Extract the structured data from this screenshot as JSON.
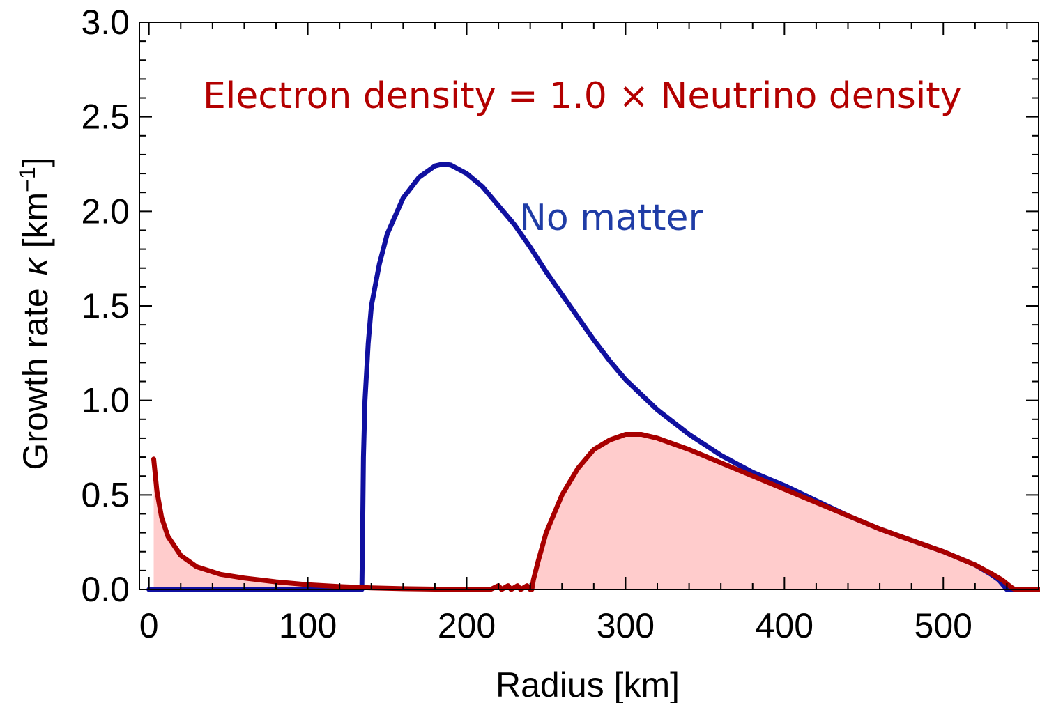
{
  "chart_data": {
    "type": "line",
    "title": "",
    "xlabel": "Radius [km]",
    "ylabel": {
      "main": "Growth rate",
      "symbol": "κ",
      "unit_open": "[km",
      "unit_sup": "−1",
      "unit_close": "]"
    },
    "xlim": [
      -6,
      560
    ],
    "ylim": [
      0,
      3.0
    ],
    "x_ticks": [
      0,
      100,
      200,
      300,
      400,
      500
    ],
    "x_tick_labels": [
      "0",
      "100",
      "200",
      "300",
      "400",
      "500"
    ],
    "y_ticks": [
      0,
      0.5,
      1.0,
      1.5,
      2.0,
      2.5,
      3.0
    ],
    "y_tick_labels": [
      "0.0",
      "0.5",
      "1.0",
      "1.5",
      "2.0",
      "2.5",
      "3.0"
    ],
    "x_minor_step": 20,
    "y_minor_step": 0.1,
    "grid": false,
    "legend": "none",
    "annotations": [
      {
        "text": "Electron density = 1.0 × Neutrino density",
        "color": "#b30000"
      },
      {
        "text": "No matter",
        "color": "#1f3ca6"
      }
    ],
    "series": [
      {
        "color": "#1010a0",
        "fill": false,
        "points": [
          [
            0,
            0
          ],
          [
            134,
            0
          ],
          [
            134.5,
            0.3
          ],
          [
            135,
            0.7
          ],
          [
            136,
            1.0
          ],
          [
            138,
            1.3
          ],
          [
            140,
            1.5
          ],
          [
            145,
            1.72
          ],
          [
            150,
            1.88
          ],
          [
            160,
            2.07
          ],
          [
            170,
            2.18
          ],
          [
            180,
            2.24
          ],
          [
            185,
            2.25
          ],
          [
            190,
            2.245
          ],
          [
            200,
            2.2
          ],
          [
            210,
            2.13
          ],
          [
            220,
            2.03
          ],
          [
            230,
            1.93
          ],
          [
            240,
            1.81
          ],
          [
            250,
            1.68
          ],
          [
            260,
            1.56
          ],
          [
            270,
            1.44
          ],
          [
            280,
            1.32
          ],
          [
            290,
            1.21
          ],
          [
            300,
            1.11
          ],
          [
            320,
            0.95
          ],
          [
            340,
            0.82
          ],
          [
            360,
            0.71
          ],
          [
            380,
            0.62
          ],
          [
            400,
            0.55
          ],
          [
            420,
            0.47
          ],
          [
            440,
            0.39
          ],
          [
            460,
            0.32
          ],
          [
            480,
            0.26
          ],
          [
            500,
            0.2
          ],
          [
            520,
            0.13
          ],
          [
            530,
            0.08
          ],
          [
            535,
            0.05
          ],
          [
            538,
            0.02
          ],
          [
            540,
            0
          ],
          [
            560,
            0
          ]
        ]
      },
      {
        "color": "#a80000",
        "fill": true,
        "fill_color": "#ffcccc",
        "points": [
          [
            3,
            0.69
          ],
          [
            5,
            0.52
          ],
          [
            8,
            0.38
          ],
          [
            12,
            0.28
          ],
          [
            20,
            0.18
          ],
          [
            30,
            0.12
          ],
          [
            45,
            0.08
          ],
          [
            60,
            0.06
          ],
          [
            80,
            0.04
          ],
          [
            100,
            0.025
          ],
          [
            120,
            0.015
          ],
          [
            140,
            0.008
          ],
          [
            160,
            0.004
          ],
          [
            180,
            0.002
          ],
          [
            200,
            0.001
          ],
          [
            215,
            0
          ],
          [
            220,
            0.02
          ],
          [
            222,
            0
          ],
          [
            226,
            0.02
          ],
          [
            228,
            0
          ],
          [
            232,
            0.02
          ],
          [
            234,
            0
          ],
          [
            238,
            0.02
          ],
          [
            240,
            0
          ],
          [
            241,
            0
          ],
          [
            242,
            0.05
          ],
          [
            245,
            0.15
          ],
          [
            250,
            0.3
          ],
          [
            260,
            0.5
          ],
          [
            270,
            0.64
          ],
          [
            280,
            0.74
          ],
          [
            290,
            0.79
          ],
          [
            300,
            0.82
          ],
          [
            310,
            0.82
          ],
          [
            320,
            0.8
          ],
          [
            340,
            0.74
          ],
          [
            360,
            0.67
          ],
          [
            380,
            0.6
          ],
          [
            400,
            0.53
          ],
          [
            420,
            0.46
          ],
          [
            440,
            0.39
          ],
          [
            460,
            0.32
          ],
          [
            480,
            0.26
          ],
          [
            500,
            0.2
          ],
          [
            520,
            0.13
          ],
          [
            530,
            0.085
          ],
          [
            537,
            0.05
          ],
          [
            540,
            0.03
          ],
          [
            543,
            0.01
          ],
          [
            545,
            0
          ],
          [
            560,
            0
          ]
        ]
      }
    ]
  }
}
